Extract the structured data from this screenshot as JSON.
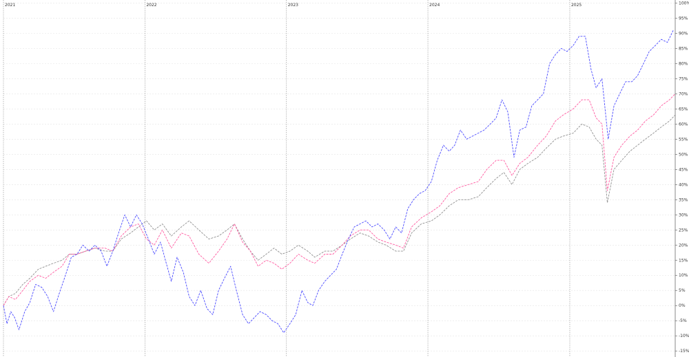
{
  "chart_data": {
    "type": "line",
    "x_tick_labels": [
      "2021",
      "2022",
      "2023",
      "2024",
      "2025"
    ],
    "y_tick_labels": [
      "-15%",
      "-10%",
      "-5%",
      "0%",
      "5%",
      "10%",
      "15%",
      "20%",
      "25%",
      "30%",
      "35%",
      "40%",
      "45%",
      "50%",
      "55%",
      "60%",
      "65%",
      "70%",
      "75%",
      "80%",
      "85%",
      "90%",
      "95%",
      "100%"
    ],
    "x_range": [
      "2021-01-01",
      "2025-09-30"
    ],
    "y_range": [
      -17,
      101
    ],
    "y_unit": "%",
    "grid": true,
    "series": [
      {
        "color": "#4b4bff",
        "style": "dashed",
        "points": [
          [
            "2021-01-01",
            0
          ],
          [
            "2021-01-10",
            -6
          ],
          [
            "2021-01-20",
            -2
          ],
          [
            "2021-01-30",
            -4
          ],
          [
            "2021-02-10",
            -8
          ],
          [
            "2021-02-25",
            -2
          ],
          [
            "2021-03-10",
            1
          ],
          [
            "2021-03-25",
            7
          ],
          [
            "2021-04-10",
            6
          ],
          [
            "2021-04-25",
            3
          ],
          [
            "2021-05-10",
            -2
          ],
          [
            "2021-05-25",
            4
          ],
          [
            "2021-06-10",
            10
          ],
          [
            "2021-06-25",
            16
          ],
          [
            "2021-07-10",
            17
          ],
          [
            "2021-07-25",
            20
          ],
          [
            "2021-08-10",
            18
          ],
          [
            "2021-08-25",
            20
          ],
          [
            "2021-09-10",
            18
          ],
          [
            "2021-09-25",
            13
          ],
          [
            "2021-10-10",
            18
          ],
          [
            "2021-10-25",
            24
          ],
          [
            "2021-11-10",
            30
          ],
          [
            "2021-11-25",
            26
          ],
          [
            "2021-12-10",
            30
          ],
          [
            "2021-12-25",
            27
          ],
          [
            "2022-01-10",
            22
          ],
          [
            "2022-01-25",
            17
          ],
          [
            "2022-02-10",
            21
          ],
          [
            "2022-02-25",
            14
          ],
          [
            "2022-03-10",
            8
          ],
          [
            "2022-03-25",
            16
          ],
          [
            "2022-04-10",
            11
          ],
          [
            "2022-04-25",
            3
          ],
          [
            "2022-05-10",
            0
          ],
          [
            "2022-05-25",
            5
          ],
          [
            "2022-06-10",
            -1
          ],
          [
            "2022-06-25",
            -3
          ],
          [
            "2022-07-10",
            5
          ],
          [
            "2022-07-25",
            9
          ],
          [
            "2022-08-10",
            13
          ],
          [
            "2022-08-25",
            5
          ],
          [
            "2022-09-10",
            -3
          ],
          [
            "2022-09-25",
            -6
          ],
          [
            "2022-10-10",
            -4
          ],
          [
            "2022-10-25",
            -2
          ],
          [
            "2022-11-10",
            -3
          ],
          [
            "2022-11-25",
            -5
          ],
          [
            "2022-12-10",
            -6
          ],
          [
            "2022-12-25",
            -9
          ],
          [
            "2023-01-10",
            -6
          ],
          [
            "2023-01-25",
            -3
          ],
          [
            "2023-02-10",
            5
          ],
          [
            "2023-02-25",
            1
          ],
          [
            "2023-03-10",
            0
          ],
          [
            "2023-03-25",
            5
          ],
          [
            "2023-04-10",
            8
          ],
          [
            "2023-04-25",
            10
          ],
          [
            "2023-05-10",
            12
          ],
          [
            "2023-05-25",
            17
          ],
          [
            "2023-06-10",
            22
          ],
          [
            "2023-06-25",
            26
          ],
          [
            "2023-07-10",
            27
          ],
          [
            "2023-07-25",
            28
          ],
          [
            "2023-08-10",
            26
          ],
          [
            "2023-08-25",
            27
          ],
          [
            "2023-09-10",
            25
          ],
          [
            "2023-09-25",
            22
          ],
          [
            "2023-10-10",
            26
          ],
          [
            "2023-10-25",
            24
          ],
          [
            "2023-11-10",
            32
          ],
          [
            "2023-11-25",
            35
          ],
          [
            "2023-12-10",
            37
          ],
          [
            "2023-12-25",
            38
          ],
          [
            "2024-01-10",
            41
          ],
          [
            "2024-01-25",
            48
          ],
          [
            "2024-02-10",
            53
          ],
          [
            "2024-02-25",
            51
          ],
          [
            "2024-03-10",
            53
          ],
          [
            "2024-03-25",
            58
          ],
          [
            "2024-04-10",
            55
          ],
          [
            "2024-04-25",
            56
          ],
          [
            "2024-05-10",
            57
          ],
          [
            "2024-05-25",
            58
          ],
          [
            "2024-06-10",
            60
          ],
          [
            "2024-06-25",
            62
          ],
          [
            "2024-07-10",
            68
          ],
          [
            "2024-07-25",
            64
          ],
          [
            "2024-08-10",
            49
          ],
          [
            "2024-08-25",
            58
          ],
          [
            "2024-09-10",
            59
          ],
          [
            "2024-09-25",
            66
          ],
          [
            "2024-10-10",
            68
          ],
          [
            "2024-10-25",
            70
          ],
          [
            "2024-11-10",
            80
          ],
          [
            "2024-11-25",
            83
          ],
          [
            "2024-12-10",
            85
          ],
          [
            "2024-12-25",
            84
          ],
          [
            "2025-01-10",
            86
          ],
          [
            "2025-01-25",
            89
          ],
          [
            "2025-02-10",
            89
          ],
          [
            "2025-02-25",
            78
          ],
          [
            "2025-03-10",
            72
          ],
          [
            "2025-03-25",
            75
          ],
          [
            "2025-04-10",
            55
          ],
          [
            "2025-04-25",
            66
          ],
          [
            "2025-05-10",
            70
          ],
          [
            "2025-05-25",
            74
          ],
          [
            "2025-06-10",
            74
          ],
          [
            "2025-06-25",
            76
          ],
          [
            "2025-07-10",
            80
          ],
          [
            "2025-07-25",
            84
          ],
          [
            "2025-08-10",
            86
          ],
          [
            "2025-08-25",
            88
          ],
          [
            "2025-09-10",
            87
          ],
          [
            "2025-09-25",
            91
          ]
        ]
      },
      {
        "color": "#ff5aa0",
        "style": "dashed",
        "points": [
          [
            "2021-01-01",
            0
          ],
          [
            "2021-01-15",
            3
          ],
          [
            "2021-02-01",
            2
          ],
          [
            "2021-02-20",
            5
          ],
          [
            "2021-03-10",
            8
          ],
          [
            "2021-04-01",
            10
          ],
          [
            "2021-04-20",
            9
          ],
          [
            "2021-05-10",
            11
          ],
          [
            "2021-06-01",
            13
          ],
          [
            "2021-06-20",
            17
          ],
          [
            "2021-07-10",
            17
          ],
          [
            "2021-08-01",
            18
          ],
          [
            "2021-08-25",
            19
          ],
          [
            "2021-09-20",
            19
          ],
          [
            "2021-10-10",
            18
          ],
          [
            "2021-11-01",
            23
          ],
          [
            "2021-11-25",
            26
          ],
          [
            "2021-12-15",
            27
          ],
          [
            "2022-01-05",
            22
          ],
          [
            "2022-01-25",
            20
          ],
          [
            "2022-02-15",
            25
          ],
          [
            "2022-03-10",
            19
          ],
          [
            "2022-04-05",
            24
          ],
          [
            "2022-04-25",
            23
          ],
          [
            "2022-05-20",
            17
          ],
          [
            "2022-06-15",
            14
          ],
          [
            "2022-07-10",
            18
          ],
          [
            "2022-08-01",
            22
          ],
          [
            "2022-08-20",
            27
          ],
          [
            "2022-09-10",
            21
          ],
          [
            "2022-09-30",
            18
          ],
          [
            "2022-10-20",
            13
          ],
          [
            "2022-11-10",
            15
          ],
          [
            "2022-11-30",
            14
          ],
          [
            "2022-12-20",
            12
          ],
          [
            "2023-01-10",
            14
          ],
          [
            "2023-02-01",
            17
          ],
          [
            "2023-02-25",
            15
          ],
          [
            "2023-03-15",
            14
          ],
          [
            "2023-04-10",
            17
          ],
          [
            "2023-05-01",
            17
          ],
          [
            "2023-05-25",
            20
          ],
          [
            "2023-06-15",
            23
          ],
          [
            "2023-07-10",
            25
          ],
          [
            "2023-08-01",
            25
          ],
          [
            "2023-08-25",
            22
          ],
          [
            "2023-09-15",
            21
          ],
          [
            "2023-10-10",
            20
          ],
          [
            "2023-10-30",
            19
          ],
          [
            "2023-11-20",
            26
          ],
          [
            "2023-12-15",
            29
          ],
          [
            "2024-01-10",
            31
          ],
          [
            "2024-02-01",
            33
          ],
          [
            "2024-02-25",
            37
          ],
          [
            "2024-03-20",
            39
          ],
          [
            "2024-04-15",
            40
          ],
          [
            "2024-05-10",
            41
          ],
          [
            "2024-06-01",
            45
          ],
          [
            "2024-06-25",
            48
          ],
          [
            "2024-07-15",
            48
          ],
          [
            "2024-08-05",
            43
          ],
          [
            "2024-08-25",
            47
          ],
          [
            "2024-09-15",
            49
          ],
          [
            "2024-10-10",
            53
          ],
          [
            "2024-11-01",
            56
          ],
          [
            "2024-11-25",
            61
          ],
          [
            "2024-12-15",
            63
          ],
          [
            "2025-01-10",
            65
          ],
          [
            "2025-02-01",
            68
          ],
          [
            "2025-02-20",
            68
          ],
          [
            "2025-03-10",
            62
          ],
          [
            "2025-03-25",
            60
          ],
          [
            "2025-04-08",
            38
          ],
          [
            "2025-04-25",
            49
          ],
          [
            "2025-05-15",
            53
          ],
          [
            "2025-06-05",
            56
          ],
          [
            "2025-06-25",
            58
          ],
          [
            "2025-07-15",
            61
          ],
          [
            "2025-08-05",
            63
          ],
          [
            "2025-08-25",
            66
          ],
          [
            "2025-09-15",
            68
          ],
          [
            "2025-09-30",
            70
          ]
        ]
      },
      {
        "color": "#909090",
        "style": "dashed",
        "points": [
          [
            "2021-01-01",
            0
          ],
          [
            "2021-01-15",
            3
          ],
          [
            "2021-02-01",
            4
          ],
          [
            "2021-02-20",
            7
          ],
          [
            "2021-03-10",
            9
          ],
          [
            "2021-04-01",
            12
          ],
          [
            "2021-04-20",
            13
          ],
          [
            "2021-05-10",
            14
          ],
          [
            "2021-06-01",
            15
          ],
          [
            "2021-06-20",
            17
          ],
          [
            "2021-07-10",
            17
          ],
          [
            "2021-08-01",
            18
          ],
          [
            "2021-08-25",
            19
          ],
          [
            "2021-09-20",
            18
          ],
          [
            "2021-10-10",
            18
          ],
          [
            "2021-11-01",
            22
          ],
          [
            "2021-11-25",
            24
          ],
          [
            "2021-12-15",
            26
          ],
          [
            "2022-01-05",
            28
          ],
          [
            "2022-01-25",
            25
          ],
          [
            "2022-02-15",
            27
          ],
          [
            "2022-03-10",
            23
          ],
          [
            "2022-04-05",
            26
          ],
          [
            "2022-04-25",
            28
          ],
          [
            "2022-05-20",
            25
          ],
          [
            "2022-06-15",
            22
          ],
          [
            "2022-07-10",
            23
          ],
          [
            "2022-08-01",
            25
          ],
          [
            "2022-08-20",
            27
          ],
          [
            "2022-09-10",
            22
          ],
          [
            "2022-09-30",
            18
          ],
          [
            "2022-10-20",
            15
          ],
          [
            "2022-11-10",
            17
          ],
          [
            "2022-11-30",
            19
          ],
          [
            "2022-12-20",
            17
          ],
          [
            "2023-01-10",
            18
          ],
          [
            "2023-02-01",
            20
          ],
          [
            "2023-02-25",
            18
          ],
          [
            "2023-03-15",
            16
          ],
          [
            "2023-04-10",
            18
          ],
          [
            "2023-05-01",
            18
          ],
          [
            "2023-05-25",
            20
          ],
          [
            "2023-06-15",
            22
          ],
          [
            "2023-07-10",
            24
          ],
          [
            "2023-08-01",
            23
          ],
          [
            "2023-08-25",
            21
          ],
          [
            "2023-09-15",
            20
          ],
          [
            "2023-10-10",
            18
          ],
          [
            "2023-10-30",
            18
          ],
          [
            "2023-11-20",
            24
          ],
          [
            "2023-12-15",
            27
          ],
          [
            "2024-01-10",
            28
          ],
          [
            "2024-02-01",
            30
          ],
          [
            "2024-02-25",
            33
          ],
          [
            "2024-03-20",
            35
          ],
          [
            "2024-04-15",
            35
          ],
          [
            "2024-05-10",
            36
          ],
          [
            "2024-06-01",
            39
          ],
          [
            "2024-06-25",
            42
          ],
          [
            "2024-07-15",
            44
          ],
          [
            "2024-08-05",
            40
          ],
          [
            "2024-08-25",
            45
          ],
          [
            "2024-09-15",
            47
          ],
          [
            "2024-10-10",
            49
          ],
          [
            "2024-11-01",
            52
          ],
          [
            "2024-11-25",
            55
          ],
          [
            "2024-12-15",
            56
          ],
          [
            "2025-01-10",
            57
          ],
          [
            "2025-02-01",
            60
          ],
          [
            "2025-02-20",
            59
          ],
          [
            "2025-03-10",
            55
          ],
          [
            "2025-03-25",
            53
          ],
          [
            "2025-04-08",
            34
          ],
          [
            "2025-04-25",
            45
          ],
          [
            "2025-05-15",
            48
          ],
          [
            "2025-06-05",
            51
          ],
          [
            "2025-06-25",
            53
          ],
          [
            "2025-07-15",
            55
          ],
          [
            "2025-08-05",
            57
          ],
          [
            "2025-08-25",
            59
          ],
          [
            "2025-09-15",
            61
          ],
          [
            "2025-09-30",
            63
          ]
        ]
      }
    ]
  }
}
